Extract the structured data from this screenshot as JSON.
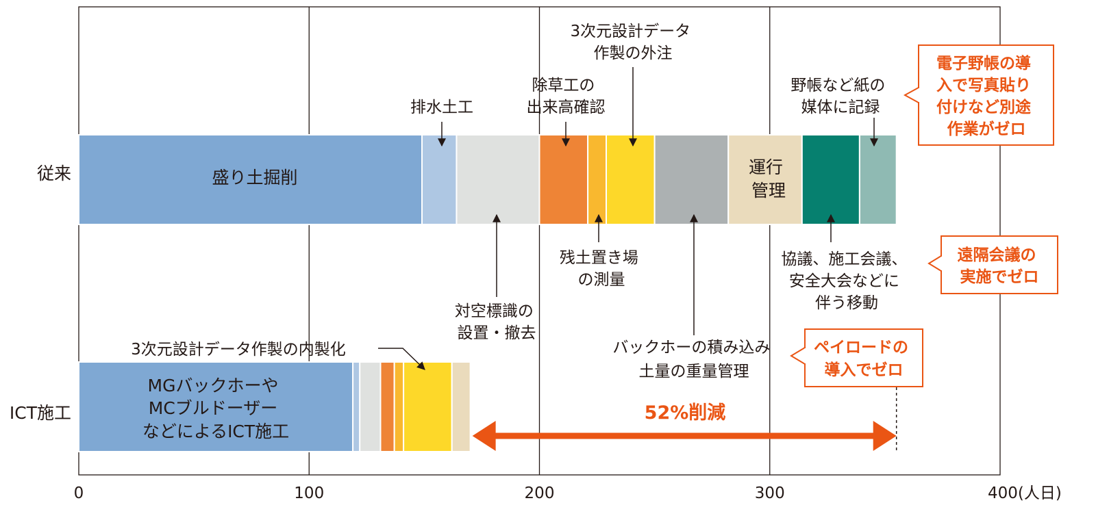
{
  "chart_data": {
    "type": "bar",
    "orientation": "horizontal",
    "stacked": true,
    "xlim": [
      0,
      400
    ],
    "x_ticks": [
      {
        "value": 0,
        "label": "0"
      },
      {
        "value": 100,
        "label": "100"
      },
      {
        "value": 200,
        "label": "200"
      },
      {
        "value": 300,
        "label": "300"
      },
      {
        "value": 400,
        "label": "400(人日)"
      }
    ],
    "grid": "vertical",
    "categories": [
      "従来",
      "ICT施工"
    ],
    "rows": [
      {
        "category": "従来",
        "segments": [
          {
            "name": "盛り土掘削",
            "value": 149,
            "color": "#7fa8d3",
            "label": "盛り土掘削"
          },
          {
            "name": "排水土工",
            "value": 15,
            "color": "#aec7e3"
          },
          {
            "name": "対空標識の設置・撤去",
            "value": 36,
            "color": "#dfe1df"
          },
          {
            "name": "除草工の出来高確認",
            "value": 21,
            "color": "#ee8436"
          },
          {
            "name": "残土置き場の測量",
            "value": 8,
            "color": "#f9b82f"
          },
          {
            "name": "3次元設計データ作製の外注",
            "value": 21,
            "color": "#fdd829"
          },
          {
            "name": "バックホーの積み込み土量の重量管理",
            "value": 32,
            "color": "#acb1b2"
          },
          {
            "name": "運行管理",
            "value": 32,
            "color": "#eadbbc",
            "label_lines": [
              "運行",
              "管理"
            ]
          },
          {
            "name": "協議、施工会議、安全大会などに伴う移動",
            "value": 25,
            "color": "#06806f"
          },
          {
            "name": "野帳など紙の媒体に記録",
            "value": 16,
            "color": "#8fbab3"
          }
        ]
      },
      {
        "category": "ICT施工",
        "segments": [
          {
            "name": "MGバックホーやMCブルドーザーなどによるICT施工",
            "value": 119,
            "color": "#7fa8d3",
            "label_lines": [
              "MGバックホーや",
              "MCブルドーザー",
              "などによるICT施工"
            ]
          },
          {
            "name": "排水土工",
            "value": 3,
            "color": "#aec7e3"
          },
          {
            "name": "対空標識の設置・撤去",
            "value": 9,
            "color": "#dfe1df"
          },
          {
            "name": "除草工の出来高確認",
            "value": 6,
            "color": "#ee8436"
          },
          {
            "name": "残土置き場の測量",
            "value": 4,
            "color": "#f9b82f"
          },
          {
            "name": "3次元設計データ作製の内製化",
            "value": 21,
            "color": "#fdd829"
          },
          {
            "name": "運行管理",
            "value": 8,
            "color": "#eadbbc"
          }
        ]
      }
    ],
    "annotations": {
      "haisui": "排水土工",
      "josou": [
        "除草工の",
        "出来高確認"
      ],
      "gaichu": [
        "3次元設計データ",
        "作製の外注"
      ],
      "yacho": [
        "野帳など紙の",
        "媒体に記録"
      ],
      "taiku": [
        "対空標識の",
        "設置・撤去"
      ],
      "zando": [
        "残土置き場",
        "の測量"
      ],
      "backhoe": [
        "バックホーの積み込み",
        "土量の重量管理"
      ],
      "kyogi": [
        "協議、施工会議、",
        "安全大会などに",
        "伴う移動"
      ],
      "naisei": "3次元設計データ作製の内製化"
    },
    "callouts": {
      "denshi": [
        "電子野帳の導",
        "入で写真貼り",
        "付けなど別途",
        "作業がゼロ"
      ],
      "enkaku": [
        "遠隔会議の",
        "実施でゼロ"
      ],
      "payload": [
        "ペイロードの",
        "導入でゼロ"
      ]
    },
    "reduction": {
      "label": "52%削減",
      "from": 170,
      "to": 355
    },
    "accent_color": "#ea5514"
  }
}
